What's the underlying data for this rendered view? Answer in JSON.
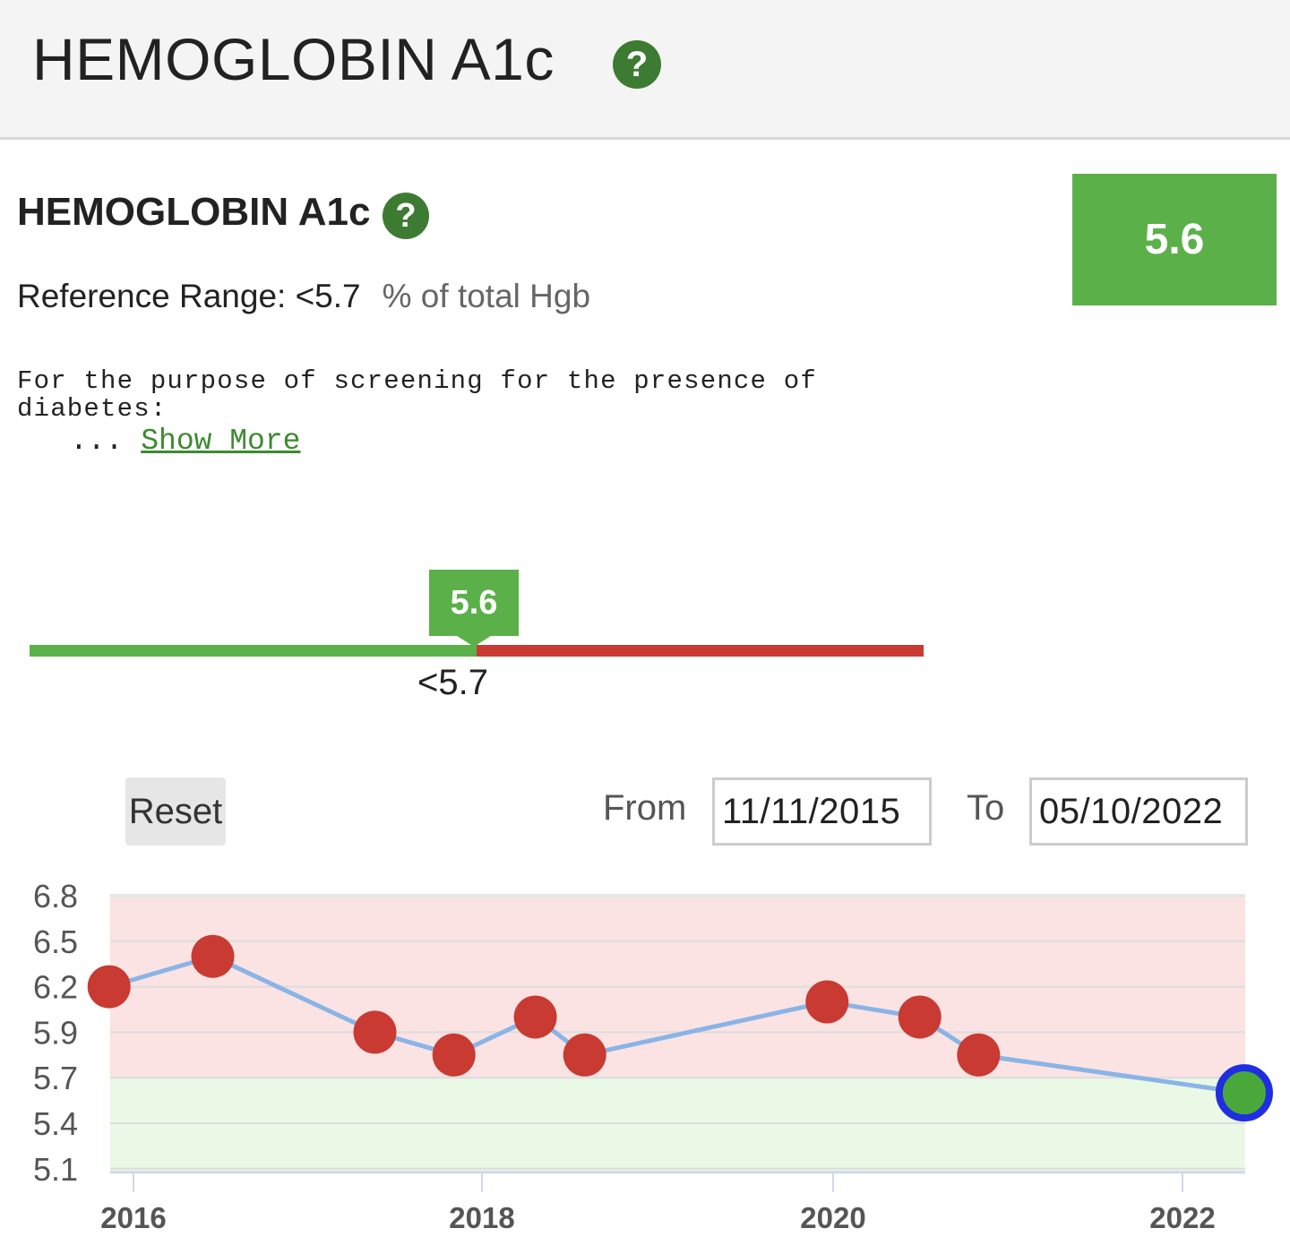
{
  "header": {
    "title": "HEMOGLOBIN A1c",
    "help_icon": "question-icon"
  },
  "test": {
    "name": "HEMOGLOBIN A1c",
    "current_value": "5.6",
    "reference_label": "Reference Range: <5.7",
    "units": "% of total Hgb",
    "note": "For the purpose of screening for the presence of\ndiabetes:",
    "ellipsis": "... ",
    "show_more": "Show More"
  },
  "range_bar": {
    "marker_value": "5.6",
    "threshold_label": "<5.7",
    "normal_color": "#5bb04a",
    "abnormal_color": "#c83a32"
  },
  "controls": {
    "reset_label": "Reset",
    "from_label": "From",
    "from_value": "11/11/2015",
    "to_label": "To",
    "to_value": "05/10/2022"
  },
  "chart_data": {
    "type": "line",
    "y_ticks": [
      "6.8",
      "6.5",
      "6.2",
      "5.9",
      "5.7",
      "5.4",
      "5.1"
    ],
    "x_ticks": [
      "2016",
      "2018",
      "2020",
      "2022"
    ],
    "ylim": [
      5.1,
      6.8
    ],
    "normal_band": [
      5.1,
      5.7
    ],
    "abnormal_band": [
      5.7,
      6.8
    ],
    "series": [
      {
        "x": [
          "2015-11-11",
          "2016-06-15",
          "2017-05-20",
          "2017-11-01",
          "2018-04-20",
          "2018-08-01",
          "2019-12-20",
          "2020-07-01",
          "2020-11-01",
          "2022-05-10"
        ],
        "y": [
          6.2,
          6.4,
          5.9,
          5.8,
          6.0,
          5.8,
          6.1,
          6.0,
          5.8,
          5.6
        ]
      }
    ],
    "colors": {
      "line": "#8ab4e6",
      "abnormal_point": "#c83a32",
      "normal_point": "#4aa83a",
      "latest_ring": "#1f2ee0",
      "abnormal_band": "#fbe3e3",
      "normal_band": "#e9f9e6"
    }
  }
}
